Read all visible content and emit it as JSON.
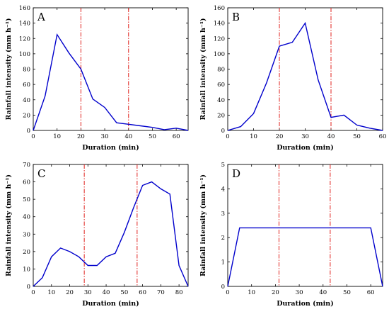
{
  "chart_data": [
    {
      "type": "line",
      "panel_label": "A",
      "xlabel": "Duration (min)",
      "ylabel": "Rainfall intensity (mm h⁻¹)",
      "xlim": [
        0,
        65
      ],
      "ylim": [
        0,
        160
      ],
      "xticks": [
        0,
        10,
        20,
        30,
        40,
        50,
        60
      ],
      "yticks": [
        0,
        20,
        40,
        60,
        80,
        100,
        120,
        140,
        160
      ],
      "vlines": [
        20,
        40
      ],
      "series": [
        {
          "color": "#0000cc",
          "x": [
            0,
            5,
            10,
            15,
            20,
            25,
            30,
            35,
            40,
            45,
            50,
            55,
            60,
            65
          ],
          "y": [
            0,
            45,
            125,
            101,
            80,
            41,
            30,
            10,
            8,
            6,
            4,
            1,
            3,
            0
          ]
        }
      ]
    },
    {
      "type": "line",
      "panel_label": "B",
      "xlabel": "Duration (min)",
      "ylabel": "Rainfall intensity (mm h⁻¹)",
      "xlim": [
        0,
        60
      ],
      "ylim": [
        0,
        160
      ],
      "xticks": [
        0,
        10,
        20,
        30,
        40,
        50,
        60
      ],
      "yticks": [
        0,
        20,
        40,
        60,
        80,
        100,
        120,
        140,
        160
      ],
      "vlines": [
        20,
        40
      ],
      "series": [
        {
          "color": "#0000cc",
          "x": [
            0,
            5,
            10,
            15,
            20,
            25,
            30,
            35,
            40,
            45,
            50,
            55,
            60
          ],
          "y": [
            0,
            5,
            22,
            62,
            110,
            115,
            140,
            66,
            17,
            20,
            7,
            3,
            0
          ]
        }
      ]
    },
    {
      "type": "line",
      "panel_label": "C",
      "xlabel": "Duration (min)",
      "ylabel": "Rainfall intensity (mm h⁻¹)",
      "xlim": [
        0,
        85
      ],
      "ylim": [
        0,
        70
      ],
      "xticks": [
        0,
        10,
        20,
        30,
        40,
        50,
        60,
        70,
        80
      ],
      "yticks": [
        0,
        10,
        20,
        30,
        40,
        50,
        60,
        70
      ],
      "vlines": [
        28,
        57
      ],
      "series": [
        {
          "color": "#0000cc",
          "x": [
            0,
            5,
            10,
            15,
            20,
            25,
            30,
            35,
            40,
            45,
            50,
            55,
            60,
            65,
            70,
            75,
            80,
            85
          ],
          "y": [
            0,
            5,
            17,
            22,
            20,
            17,
            12,
            12,
            17,
            19,
            31,
            45,
            58,
            60,
            56,
            53,
            12,
            0
          ]
        }
      ]
    },
    {
      "type": "line",
      "panel_label": "D",
      "xlabel": "Duration (min)",
      "ylabel": "Rainfall intensity (mm h⁻¹)",
      "xlim": [
        0,
        65
      ],
      "ylim": [
        0,
        5
      ],
      "xticks": [
        0,
        10,
        20,
        30,
        40,
        50,
        60
      ],
      "yticks": [
        0,
        1,
        2,
        3,
        4,
        5
      ],
      "vlines": [
        21.5,
        43
      ],
      "series": [
        {
          "color": "#0000cc",
          "x": [
            0,
            5,
            60,
            65
          ],
          "y": [
            0,
            2.4,
            2.4,
            0
          ]
        }
      ]
    }
  ]
}
